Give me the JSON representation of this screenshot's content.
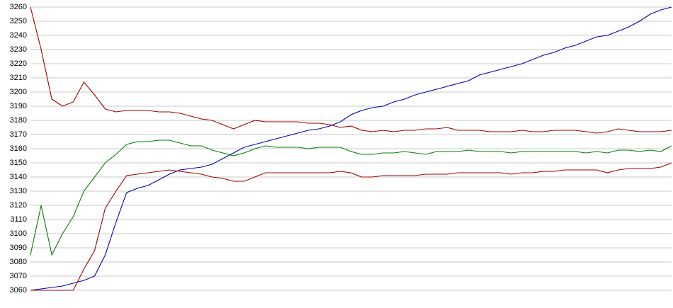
{
  "chart_data": {
    "type": "line",
    "categories": [
      null,
      null,
      null,
      null,
      null,
      null,
      null,
      null,
      null,
      null,
      null,
      null,
      null,
      null,
      null,
      null,
      null,
      null,
      null,
      null,
      null,
      null,
      null,
      null,
      null,
      null,
      null,
      null,
      null,
      null,
      null,
      null,
      null,
      null,
      null,
      null,
      null,
      null,
      null,
      null,
      null,
      null,
      null,
      null,
      null,
      null,
      null,
      null,
      null,
      null,
      null,
      null,
      null,
      null,
      null,
      null,
      null,
      null,
      null,
      null,
      null
    ],
    "ylim": [
      3060,
      3260
    ],
    "yticks": [
      3060,
      3070,
      3080,
      3090,
      3100,
      3110,
      3120,
      3130,
      3140,
      3150,
      3160,
      3170,
      3180,
      3190,
      3200,
      3210,
      3220,
      3230,
      3240,
      3250,
      3260
    ],
    "grid": true,
    "series": [
      {
        "color": "#0000b0",
        "values": [
          3060,
          3061,
          3062,
          3063,
          3065,
          3067,
          3070,
          3085,
          3108,
          3129,
          3132,
          3134,
          3138,
          3142,
          3145,
          3146,
          3147,
          3149,
          3153,
          3157,
          3161,
          3163,
          3165,
          3167,
          3169,
          3171,
          3173,
          3174,
          3176,
          3179,
          3184,
          3187,
          3189,
          3190,
          3193,
          3195,
          3198,
          3200,
          3202,
          3204,
          3206,
          3208,
          3212,
          3214,
          3216,
          3218,
          3220,
          3223,
          3226,
          3228,
          3231,
          3233,
          3236,
          3239,
          3240,
          3243,
          3246,
          3250,
          3255,
          3258,
          3260
        ]
      },
      {
        "color": "#a00000",
        "values": [
          3260,
          3230,
          3195,
          3190,
          3193,
          3207,
          3198,
          3188,
          3186,
          3187,
          3187,
          3187,
          3186,
          3186,
          3185,
          3183,
          3181,
          3180,
          3177,
          3174,
          3177,
          3180,
          3179,
          3179,
          3179,
          3179,
          3178,
          3178,
          3177,
          3175,
          3176,
          3173,
          3172,
          3173,
          3172,
          3173,
          3173,
          3174,
          3174,
          3175,
          3173,
          3173,
          3173,
          3172,
          3172,
          3172,
          3173,
          3172,
          3172,
          3173,
          3173,
          3173,
          3172,
          3171,
          3172,
          3174,
          3173,
          3172,
          3172,
          3172,
          3173
        ]
      },
      {
        "color": "#008000",
        "values": [
          3085,
          3120,
          3085,
          3100,
          3112,
          3130,
          3140,
          3150,
          3156,
          3163,
          3165,
          3165,
          3166,
          3166,
          3164,
          3162,
          3162,
          3159,
          3157,
          3155,
          3157,
          3160,
          3162,
          3161,
          3161,
          3161,
          3160,
          3161,
          3161,
          3161,
          3158,
          3156,
          3156,
          3157,
          3157,
          3158,
          3157,
          3156,
          3158,
          3158,
          3158,
          3159,
          3158,
          3158,
          3158,
          3157,
          3158,
          3158,
          3158,
          3158,
          3158,
          3158,
          3157,
          3158,
          3157,
          3159,
          3159,
          3158,
          3159,
          3158,
          3162
        ]
      },
      {
        "color": "#a00000",
        "values": [
          3060,
          3060,
          3060,
          3060,
          3060,
          3075,
          3088,
          3118,
          3130,
          3141,
          3142,
          3143,
          3144,
          3145,
          3144,
          3143,
          3142,
          3140,
          3139,
          3137,
          3137,
          3140,
          3143,
          3143,
          3143,
          3143,
          3143,
          3143,
          3143,
          3144,
          3143,
          3140,
          3140,
          3141,
          3141,
          3141,
          3141,
          3142,
          3142,
          3142,
          3143,
          3143,
          3143,
          3143,
          3143,
          3142,
          3143,
          3143,
          3144,
          3144,
          3145,
          3145,
          3145,
          3145,
          3143,
          3145,
          3146,
          3146,
          3146,
          3147,
          3150
        ]
      }
    ]
  }
}
